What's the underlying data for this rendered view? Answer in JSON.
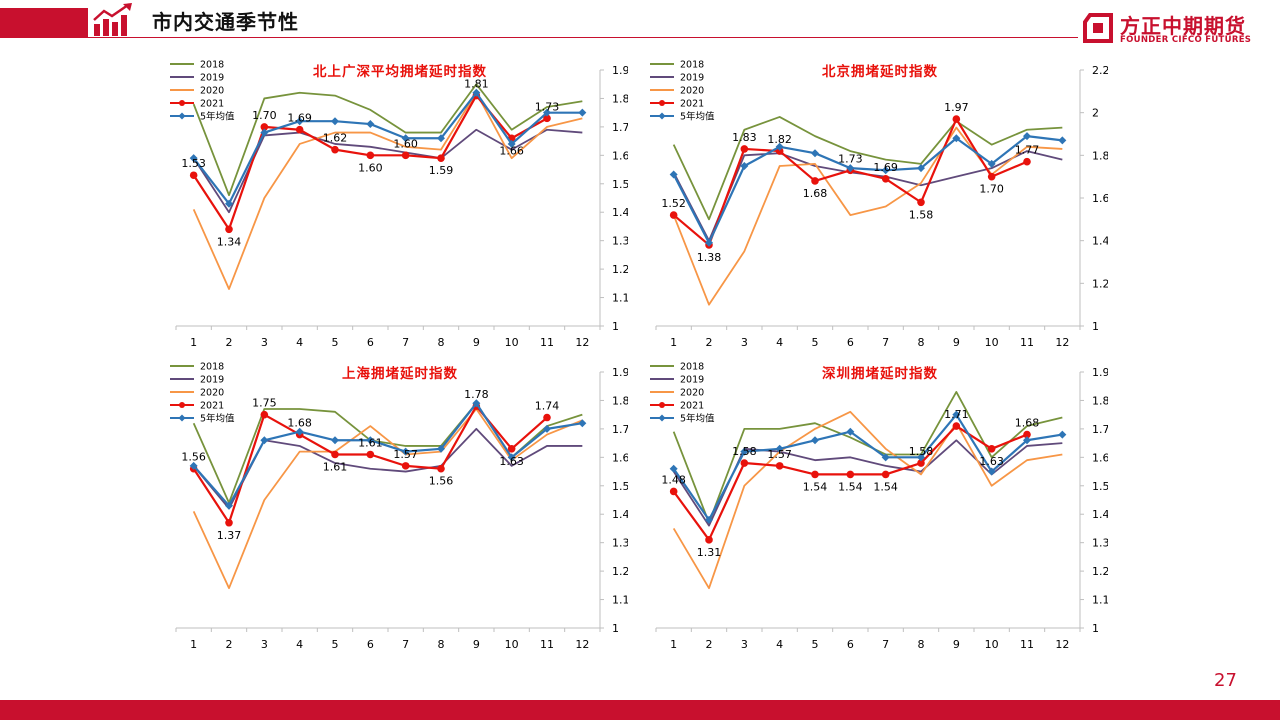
{
  "header": {
    "title": "市内交通季节性"
  },
  "logo": {
    "cn": "方正中期期货",
    "en": "FOUNDER CIFCO FUTURES"
  },
  "page_number": "27",
  "colors": {
    "brand_red": "#c8102e",
    "series": {
      "2018": "#77933c",
      "2019": "#604a7b",
      "2020": "#f79646",
      "2021": "#e8120c",
      "5年均值": "#2e75b6"
    }
  },
  "chart_data": [
    {
      "type": "line",
      "title": "北上广深平均拥堵延时指数",
      "x": [
        1,
        2,
        3,
        4,
        5,
        6,
        7,
        8,
        9,
        10,
        11,
        12
      ],
      "ylim": [
        1,
        1.9
      ],
      "yticks": [
        "1",
        "1.1",
        "1.2",
        "1.3",
        "1.4",
        "1.5",
        "1.6",
        "1.7",
        "1.8",
        "1.9"
      ],
      "legend_position": "top-left",
      "series": [
        {
          "name": "2018",
          "values": [
            1.78,
            1.46,
            1.8,
            1.82,
            1.81,
            1.76,
            1.68,
            1.68,
            1.85,
            1.69,
            1.77,
            1.79
          ]
        },
        {
          "name": "2019",
          "values": [
            1.59,
            1.4,
            1.67,
            1.68,
            1.64,
            1.63,
            1.61,
            1.59,
            1.69,
            1.62,
            1.69,
            1.68
          ]
        },
        {
          "name": "2020",
          "values": [
            1.41,
            1.13,
            1.45,
            1.64,
            1.68,
            1.68,
            1.63,
            1.62,
            1.82,
            1.59,
            1.7,
            1.73
          ]
        },
        {
          "name": "2021",
          "values": [
            1.53,
            1.34,
            1.7,
            1.69,
            1.62,
            1.6,
            1.6,
            1.59,
            1.81,
            1.66,
            1.73,
            null
          ],
          "labels": [
            "1.53",
            "1.34",
            "1.70",
            "1.69",
            "1.62",
            "1.60",
            "1.60",
            "1.59",
            "1.81",
            "1.66",
            "1.73",
            ""
          ]
        },
        {
          "name": "5年均值",
          "values": [
            1.59,
            1.43,
            1.68,
            1.72,
            1.72,
            1.71,
            1.66,
            1.66,
            1.82,
            1.64,
            1.75,
            1.75
          ]
        }
      ]
    },
    {
      "type": "line",
      "title": "北京拥堵延时指数",
      "x": [
        1,
        2,
        3,
        4,
        5,
        6,
        7,
        8,
        9,
        10,
        11,
        12
      ],
      "ylim": [
        1,
        2.2
      ],
      "yticks": [
        "1",
        "1.2",
        "1.4",
        "1.6",
        "1.8",
        "2",
        "2.2"
      ],
      "legend_position": "top-left",
      "series": [
        {
          "name": "2018",
          "values": [
            1.85,
            1.5,
            1.92,
            1.98,
            1.89,
            1.82,
            1.78,
            1.76,
            1.96,
            1.85,
            1.92,
            1.93
          ]
        },
        {
          "name": "2019",
          "values": [
            1.72,
            1.4,
            1.8,
            1.81,
            1.75,
            1.72,
            1.7,
            1.66,
            1.7,
            1.74,
            1.82,
            1.78
          ]
        },
        {
          "name": "2020",
          "values": [
            1.52,
            1.1,
            1.35,
            1.75,
            1.76,
            1.52,
            1.56,
            1.67,
            1.93,
            1.71,
            1.84,
            1.83
          ]
        },
        {
          "name": "2021",
          "values": [
            1.52,
            1.38,
            1.83,
            1.82,
            1.68,
            1.73,
            1.69,
            1.58,
            1.97,
            1.7,
            1.77,
            null
          ],
          "labels": [
            "1.52",
            "1.38",
            "1.83",
            "1.82",
            "1.68",
            "1.73",
            "1.69",
            "1.58",
            "1.97",
            "1.70",
            "1.77",
            ""
          ]
        },
        {
          "name": "5年均值",
          "values": [
            1.71,
            1.39,
            1.75,
            1.84,
            1.81,
            1.74,
            1.73,
            1.74,
            1.88,
            1.76,
            1.89,
            1.87
          ]
        }
      ]
    },
    {
      "type": "line",
      "title": "上海拥堵延时指数",
      "x": [
        1,
        2,
        3,
        4,
        5,
        6,
        7,
        8,
        9,
        10,
        11,
        12
      ],
      "ylim": [
        1,
        1.9
      ],
      "yticks": [
        "1",
        "1.1",
        "1.2",
        "1.3",
        "1.4",
        "1.5",
        "1.6",
        "1.7",
        "1.8",
        "1.9"
      ],
      "legend_position": "top-left",
      "series": [
        {
          "name": "2018",
          "values": [
            1.72,
            1.44,
            1.77,
            1.77,
            1.76,
            1.66,
            1.64,
            1.64,
            1.79,
            1.6,
            1.71,
            1.75
          ]
        },
        {
          "name": "2019",
          "values": [
            1.57,
            1.42,
            1.66,
            1.64,
            1.58,
            1.56,
            1.55,
            1.57,
            1.7,
            1.57,
            1.64,
            1.64
          ]
        },
        {
          "name": "2020",
          "values": [
            1.41,
            1.14,
            1.45,
            1.62,
            1.62,
            1.71,
            1.61,
            1.62,
            1.77,
            1.59,
            1.68,
            1.73
          ]
        },
        {
          "name": "2021",
          "values": [
            1.56,
            1.37,
            1.75,
            1.68,
            1.61,
            1.61,
            1.57,
            1.56,
            1.78,
            1.63,
            1.74,
            null
          ],
          "labels": [
            "1.56",
            "1.37",
            "1.75",
            "1.68",
            "1.61",
            "1.61",
            "1.57",
            "1.56",
            "1.78",
            "1.63",
            "1.74",
            ""
          ]
        },
        {
          "name": "5年均值",
          "values": [
            1.57,
            1.43,
            1.66,
            1.69,
            1.66,
            1.66,
            1.62,
            1.63,
            1.79,
            1.6,
            1.7,
            1.72
          ]
        }
      ]
    },
    {
      "type": "line",
      "title": "深圳拥堵延时指数",
      "x": [
        1,
        2,
        3,
        4,
        5,
        6,
        7,
        8,
        9,
        10,
        11,
        12
      ],
      "ylim": [
        1,
        1.9
      ],
      "yticks": [
        "1",
        "1.1",
        "1.2",
        "1.3",
        "1.4",
        "1.5",
        "1.6",
        "1.7",
        "1.8",
        "1.9"
      ],
      "legend_position": "top-left",
      "series": [
        {
          "name": "2018",
          "values": [
            1.69,
            1.37,
            1.7,
            1.7,
            1.72,
            1.67,
            1.61,
            1.61,
            1.83,
            1.6,
            1.71,
            1.74
          ]
        },
        {
          "name": "2019",
          "values": [
            1.55,
            1.36,
            1.63,
            1.62,
            1.59,
            1.6,
            1.57,
            1.55,
            1.66,
            1.54,
            1.64,
            1.65
          ]
        },
        {
          "name": "2020",
          "values": [
            1.35,
            1.14,
            1.5,
            1.62,
            1.7,
            1.76,
            1.63,
            1.54,
            1.72,
            1.5,
            1.59,
            1.61
          ]
        },
        {
          "name": "2021",
          "values": [
            1.48,
            1.31,
            1.58,
            1.57,
            1.54,
            1.54,
            1.54,
            1.58,
            1.71,
            1.63,
            1.68,
            null
          ],
          "labels": [
            "1.48",
            "1.31",
            "1.58",
            "1.57",
            "1.54",
            "1.54",
            "1.54",
            "1.58",
            "1.71",
            "1.63",
            "1.68",
            ""
          ]
        },
        {
          "name": "5年均值",
          "values": [
            1.56,
            1.38,
            1.62,
            1.63,
            1.66,
            1.69,
            1.6,
            1.6,
            1.75,
            1.55,
            1.66,
            1.68
          ]
        }
      ]
    }
  ]
}
